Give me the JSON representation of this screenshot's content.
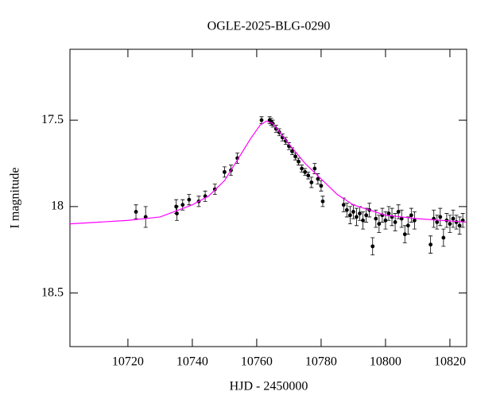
{
  "chart_data": {
    "type": "scatter",
    "title": "OGLE-2025-BLG-0290",
    "x_label": "HJD - 2450000",
    "y_label": "I magnitude",
    "xlim": [
      10702,
      10825.2
    ],
    "ylim": [
      18.81,
      17.09
    ],
    "xticks": [
      10720,
      10740,
      10760,
      10780,
      10800,
      10820
    ],
    "yticks": [
      17.5,
      18,
      18.5
    ],
    "series": [
      {
        "type": "scatter",
        "color": "#000000",
        "x": [
          10722.5,
          10725.5,
          10735,
          10735.2,
          10737,
          10739,
          10742,
          10744,
          10747,
          10750,
          10752,
          10754,
          10761.5,
          10764,
          10764.5,
          10765,
          10766,
          10767,
          10768,
          10769,
          10770,
          10771,
          10772,
          10773,
          10774,
          10775,
          10776,
          10777,
          10778,
          10779,
          10780,
          10780.5,
          10787,
          10788,
          10789,
          10790,
          10791,
          10792,
          10793,
          10794,
          10795,
          10796,
          10797,
          10798,
          10799,
          10800,
          10801,
          10802,
          10803,
          10804,
          10805,
          10806,
          10807,
          10808,
          10809,
          10814,
          10815,
          10816,
          10817,
          10818,
          10819,
          10820,
          10821,
          10822,
          10823,
          10824
        ],
        "values": [
          18.03,
          18.06,
          18.0,
          18.04,
          17.99,
          17.96,
          17.97,
          17.94,
          17.9,
          17.8,
          17.79,
          17.72,
          17.5,
          17.5,
          17.51,
          17.52,
          17.55,
          17.57,
          17.6,
          17.62,
          17.65,
          17.68,
          17.71,
          17.74,
          17.78,
          17.8,
          17.82,
          17.86,
          17.78,
          17.84,
          17.88,
          17.97,
          17.99,
          18.02,
          18.05,
          18.03,
          18.06,
          18.04,
          18.08,
          18.05,
          18.02,
          18.23,
          18.07,
          18.1,
          18.05,
          18.08,
          18.04,
          18.06,
          18.09,
          18.03,
          18.07,
          18.16,
          18.11,
          18.05,
          18.08,
          18.22,
          18.07,
          18.09,
          18.06,
          18.18,
          18.08,
          18.1,
          18.07,
          18.09,
          18.11,
          18.08
        ],
        "errors": [
          0.04,
          0.06,
          0.04,
          0.04,
          0.03,
          0.03,
          0.03,
          0.03,
          0.03,
          0.03,
          0.03,
          0.03,
          0.02,
          0.02,
          0.02,
          0.02,
          0.02,
          0.02,
          0.02,
          0.02,
          0.02,
          0.02,
          0.02,
          0.02,
          0.02,
          0.02,
          0.02,
          0.03,
          0.03,
          0.03,
          0.03,
          0.03,
          0.04,
          0.04,
          0.05,
          0.04,
          0.05,
          0.04,
          0.05,
          0.04,
          0.04,
          0.05,
          0.05,
          0.05,
          0.04,
          0.05,
          0.04,
          0.05,
          0.05,
          0.04,
          0.05,
          0.05,
          0.05,
          0.04,
          0.05,
          0.05,
          0.05,
          0.04,
          0.05,
          0.05,
          0.04,
          0.05,
          0.05,
          0.04,
          0.05,
          0.04
        ]
      },
      {
        "type": "line",
        "color": "#ff00ff",
        "x": [
          10702,
          10720,
          10730,
          10740,
          10745,
          10750,
          10755,
          10758,
          10761,
          10763,
          10765,
          10768,
          10771,
          10775,
          10780,
          10785,
          10790,
          10795,
          10800,
          10810,
          10825
        ],
        "values": [
          18.1,
          18.08,
          18.06,
          17.99,
          17.94,
          17.85,
          17.7,
          17.61,
          17.53,
          17.505,
          17.52,
          17.59,
          17.66,
          17.75,
          17.84,
          17.93,
          17.99,
          18.02,
          18.05,
          18.07,
          18.09
        ]
      }
    ]
  }
}
